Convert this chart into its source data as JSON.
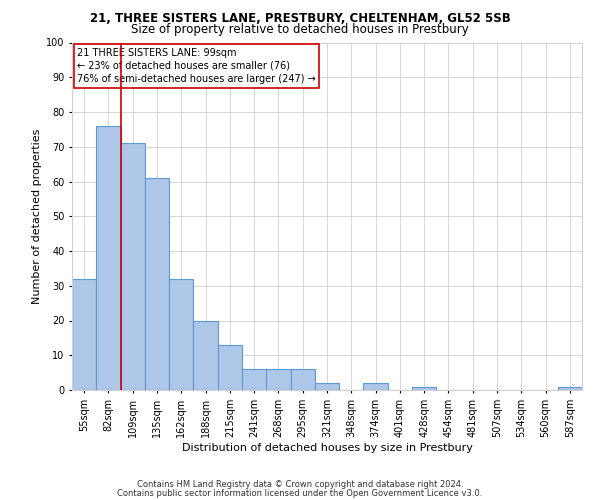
{
  "title1": "21, THREE SISTERS LANE, PRESTBURY, CHELTENHAM, GL52 5SB",
  "title2": "Size of property relative to detached houses in Prestbury",
  "xlabel": "Distribution of detached houses by size in Prestbury",
  "ylabel": "Number of detached properties",
  "footer1": "Contains HM Land Registry data © Crown copyright and database right 2024.",
  "footer2": "Contains public sector information licensed under the Open Government Licence v3.0.",
  "categories": [
    "55sqm",
    "82sqm",
    "109sqm",
    "135sqm",
    "162sqm",
    "188sqm",
    "215sqm",
    "241sqm",
    "268sqm",
    "295sqm",
    "321sqm",
    "348sqm",
    "374sqm",
    "401sqm",
    "428sqm",
    "454sqm",
    "481sqm",
    "507sqm",
    "534sqm",
    "560sqm",
    "587sqm"
  ],
  "values": [
    32,
    76,
    71,
    61,
    32,
    20,
    13,
    6,
    6,
    6,
    2,
    0,
    2,
    0,
    1,
    0,
    0,
    0,
    0,
    0,
    1
  ],
  "bar_color": "#aec6e8",
  "bar_edge_color": "#5b9bd5",
  "bar_linewidth": 0.8,
  "vline_x_index": 2,
  "vline_color": "#cc0000",
  "annotation_text": "21 THREE SISTERS LANE: 99sqm\n← 23% of detached houses are smaller (76)\n76% of semi-detached houses are larger (247) →",
  "annotation_box_color": "#ffffff",
  "annotation_box_edge": "#cc0000",
  "ylim": [
    0,
    100
  ],
  "yticks": [
    0,
    10,
    20,
    30,
    40,
    50,
    60,
    70,
    80,
    90,
    100
  ],
  "background_color": "#ffffff",
  "grid_color": "#d0d0d0",
  "title1_fontsize": 8.5,
  "title2_fontsize": 8.5,
  "xlabel_fontsize": 8,
  "ylabel_fontsize": 8,
  "tick_fontsize": 7,
  "footer_fontsize": 6,
  "annotation_fontsize": 7
}
